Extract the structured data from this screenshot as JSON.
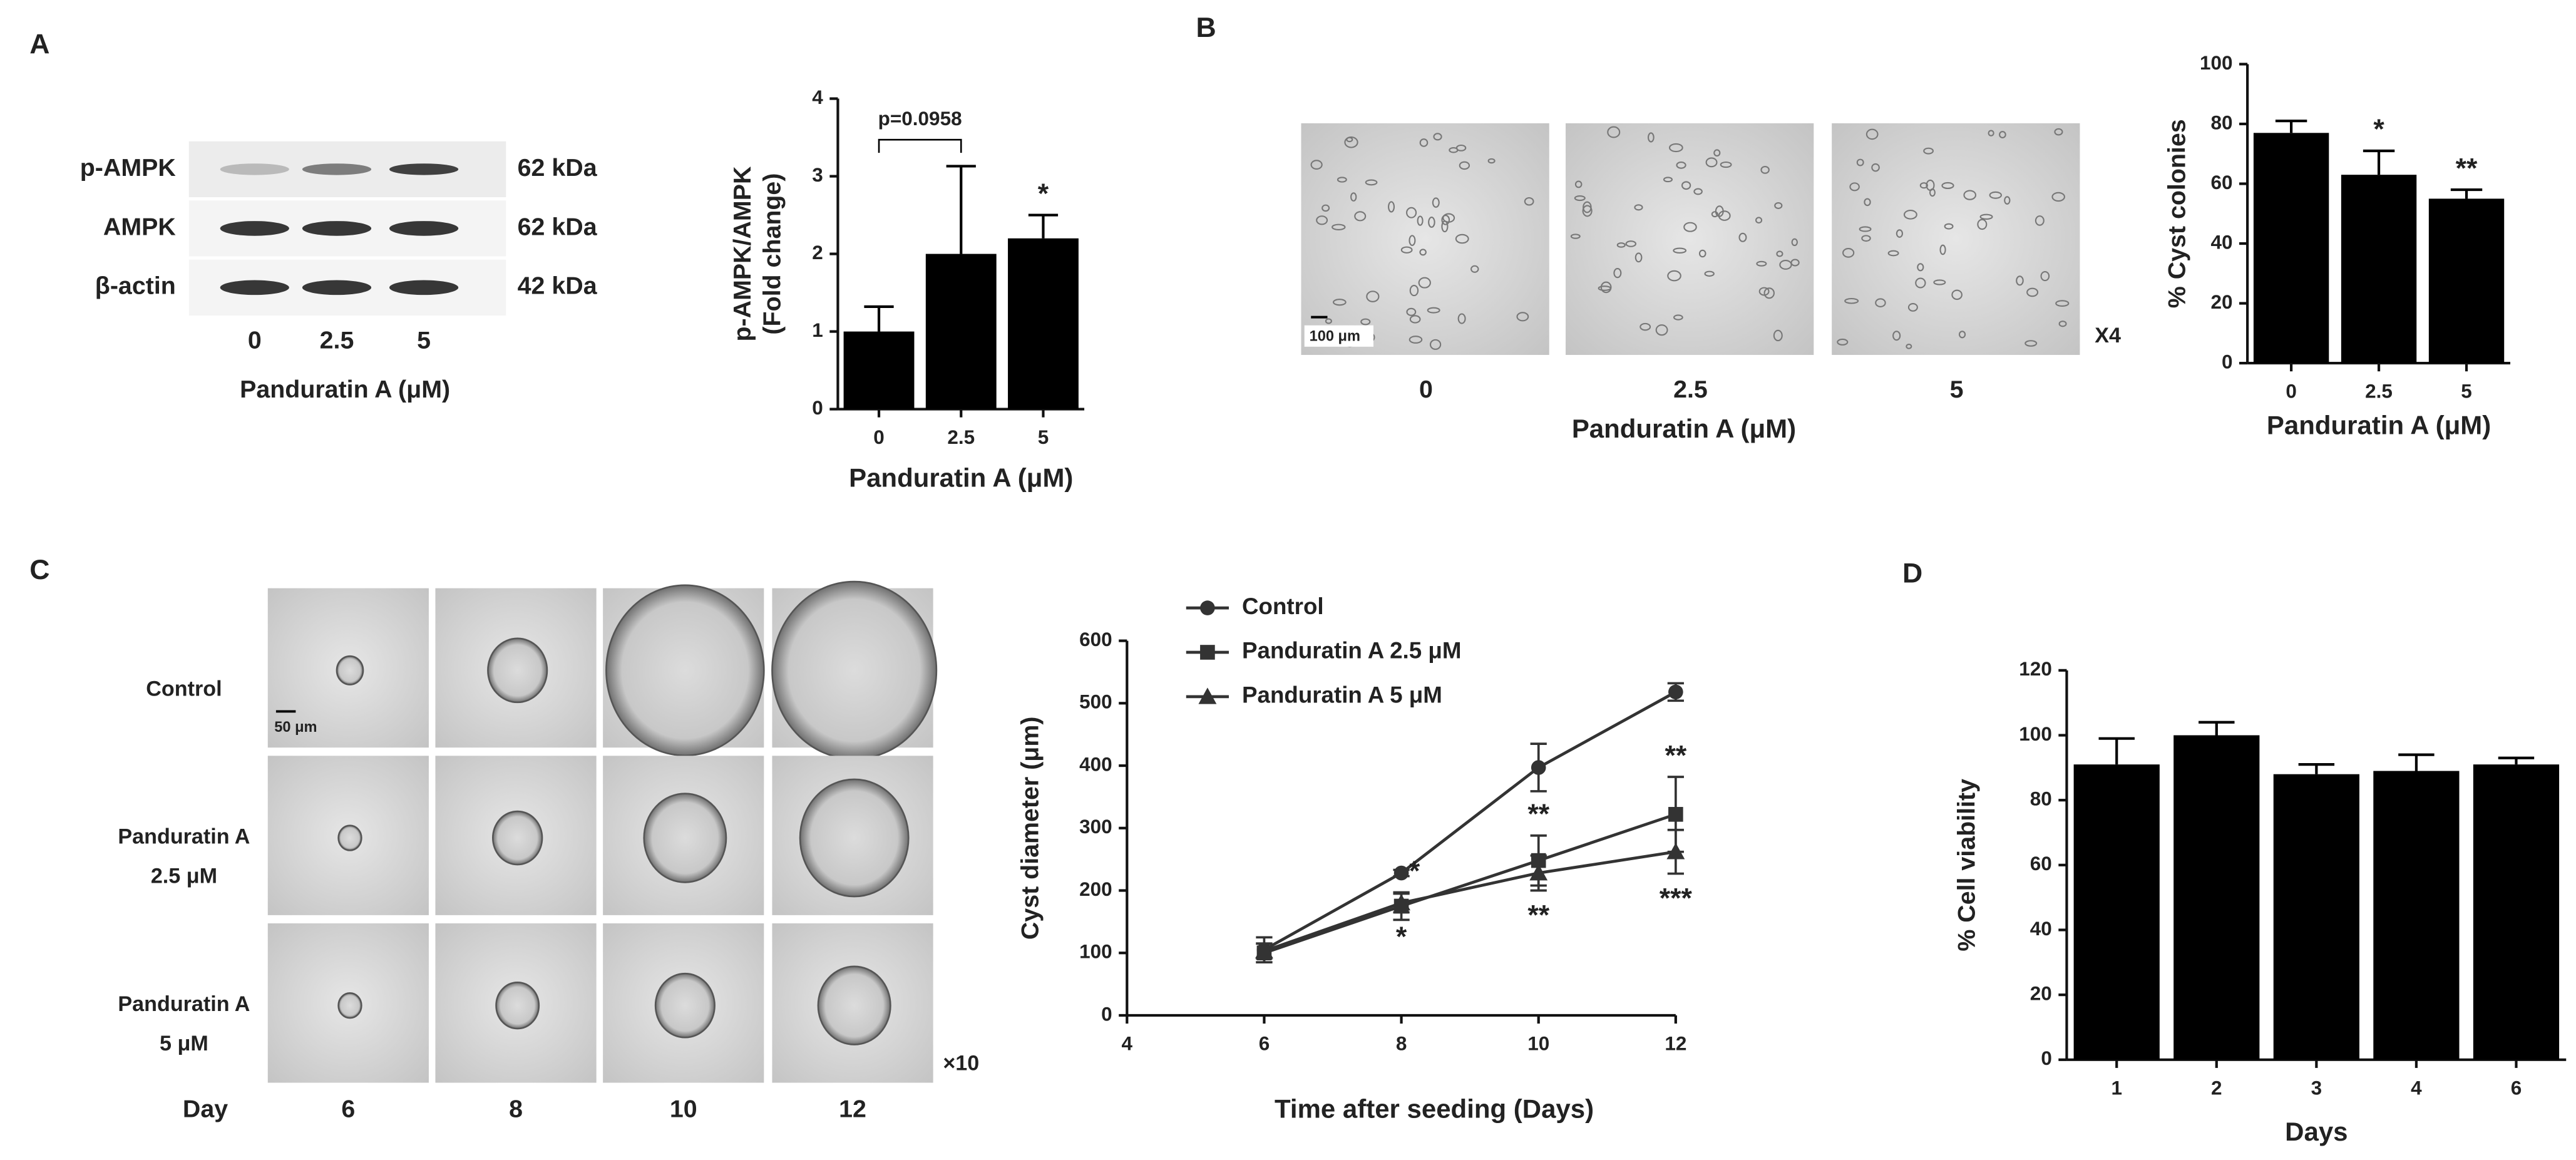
{
  "panel_labels": [
    "A",
    "B",
    "C",
    "D"
  ],
  "western_blot": {
    "rows": [
      {
        "name": "p-AMPK",
        "size": "62 kDa"
      },
      {
        "name": "AMPK",
        "size": "62 kDa"
      },
      {
        "name": "β-actin",
        "size": "42 kDa"
      }
    ],
    "lanes": [
      "0",
      "2.5",
      "5"
    ],
    "xlabel": "Panduratin A (μM)"
  },
  "micrographs_b": {
    "lanes": [
      "0",
      "2.5",
      "5"
    ],
    "xlabel": "Panduratin A (μM)",
    "magnification": "X4",
    "scale_bar": "100 μm"
  },
  "micrographs_c": {
    "rows": [
      [
        "Control"
      ],
      [
        "Panduratin A",
        "2.5 μM"
      ],
      [
        "Panduratin A",
        "5 μM"
      ]
    ],
    "day_label": "Day",
    "days": [
      "6",
      "8",
      "10",
      "12"
    ],
    "magnification": "×10",
    "scale_bar": "50 μm"
  },
  "chart_data": [
    {
      "type": "bar",
      "ylabel": [
        "p-AMPK/AMPK",
        "(Fold change)"
      ],
      "xlabel": "Panduratin A (μM)",
      "categories": [
        "0",
        "2.5",
        "5"
      ],
      "values": [
        1.0,
        2.0,
        2.2
      ],
      "errors": [
        0.32,
        1.13,
        0.3
      ],
      "significance": [
        null,
        null,
        "*"
      ],
      "comparison": {
        "label": "p=0.0958",
        "between": [
          "0",
          "2.5"
        ]
      },
      "color": "#000000",
      "ylim": [
        0,
        4
      ],
      "yticks": [
        0,
        1,
        2,
        3,
        4
      ]
    },
    {
      "type": "bar",
      "ylabel": [
        "% Cyst colonies"
      ],
      "xlabel": "Panduratin A (μM)",
      "categories": [
        "0",
        "2.5",
        "5"
      ],
      "values": [
        77,
        63,
        55
      ],
      "errors": [
        4,
        8,
        3
      ],
      "significance": [
        null,
        "*",
        "**"
      ],
      "color": "#000000",
      "ylim": [
        0,
        100
      ],
      "yticks": [
        0,
        20,
        40,
        60,
        80,
        100
      ]
    },
    {
      "type": "line",
      "ylabel": [
        "Cyst diameter (μm)"
      ],
      "xlabel": "Time after seeding (Days)",
      "x": [
        6,
        8,
        10,
        12
      ],
      "series": [
        {
          "name": "Control",
          "color": "#333333",
          "marker": "circle",
          "values": [
            105,
            228,
            397,
            518
          ],
          "errors": [
            20,
            5,
            38,
            14
          ],
          "significance": [
            null,
            null,
            null,
            null
          ]
        },
        {
          "name": "Panduratin A 2.5 μM",
          "color": "#333333",
          "marker": "square",
          "values": [
            100,
            175,
            248,
            322
          ],
          "errors": [
            15,
            22,
            40,
            60
          ],
          "significance": [
            null,
            "*",
            "**",
            "**"
          ]
        },
        {
          "name": "Panduratin A 5 μM",
          "color": "#333333",
          "marker": "triangle",
          "values": [
            103,
            180,
            228,
            262
          ],
          "errors": [
            12,
            15,
            28,
            35
          ],
          "significance": [
            null,
            "*",
            "**",
            "***"
          ]
        }
      ],
      "xlim": [
        4,
        12
      ],
      "xticks": [
        4,
        6,
        8,
        10,
        12
      ],
      "ylim": [
        0,
        600
      ],
      "yticks": [
        0,
        100,
        200,
        300,
        400,
        500,
        600
      ]
    },
    {
      "type": "bar",
      "ylabel": [
        "% Cell viability"
      ],
      "xlabel": "Days",
      "categories": [
        "1",
        "2",
        "3",
        "4",
        "6"
      ],
      "values": [
        91,
        100,
        88,
        89,
        91
      ],
      "errors": [
        8,
        4,
        3,
        5,
        2
      ],
      "significance": [
        null,
        null,
        null,
        null,
        null
      ],
      "color": "#000000",
      "ylim": [
        0,
        120
      ],
      "yticks": [
        0,
        20,
        40,
        60,
        80,
        100,
        120
      ]
    }
  ]
}
